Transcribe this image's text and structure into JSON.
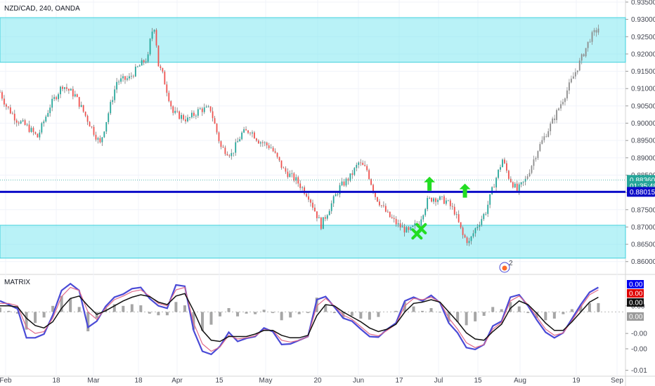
{
  "header": {
    "symbol_title": "NZD/CAD, 240, OANDA",
    "indicator_title": "MATRIX"
  },
  "colors": {
    "zone_fill": "#7fe8f0",
    "zone_stroke": "#3fd0dc",
    "level_line": "#0c0cc8",
    "candle": "#8c8c8c",
    "candle_up": "#26a69a",
    "candle_down": "#ef5350",
    "arrow": "#22dd22",
    "osc_fast": "#4a4ad6",
    "osc_slow": "#e06b8b",
    "osc_mid": "#111111",
    "osc_hist": "#909090"
  },
  "chart_data": [
    {
      "type": "candlestick",
      "title": "NZD/CAD, 240, OANDA",
      "price_axis": {
        "range": [
          0.8565,
          0.9356
        ],
        "ticks": [
          "0.93500",
          "0.93000",
          "0.92500",
          "0.92000",
          "0.91500",
          "0.91000",
          "0.90500",
          "0.90000",
          "0.89500",
          "0.89000",
          "0.88500",
          "0.88000",
          "0.87500",
          "0.87000",
          "0.86500",
          "0.86000"
        ]
      },
      "time_axis": {
        "ticks": [
          "Feb",
          "18",
          "Mar",
          "18",
          "Apr",
          "15",
          "May",
          "20",
          "Jun",
          "17",
          "Jul",
          "15",
          "Aug",
          "19",
          "Sep"
        ]
      },
      "price_labels": [
        {
          "text": "0.88360",
          "value": 0.8836,
          "bg": "#26a69a"
        },
        {
          "text": "01:35:48",
          "value": 0.88185,
          "bg": "#26a69a"
        },
        {
          "text": "0.88015",
          "value": 0.88015,
          "bg": "#0c0cc8"
        }
      ],
      "level_line": 0.88015,
      "last_price_line": 0.8836,
      "zones": [
        {
          "from": 0.9176,
          "to": 0.9305
        },
        {
          "from": 0.861,
          "to": 0.8705
        }
      ],
      "path": [
        {
          "t": 0,
          "p": 0.909
        },
        {
          "t": 3,
          "p": 0.905
        },
        {
          "t": 8,
          "p": 0.901
        },
        {
          "t": 13,
          "p": 0.899
        },
        {
          "t": 18,
          "p": 0.896
        },
        {
          "t": 24,
          "p": 0.905
        },
        {
          "t": 30,
          "p": 0.911
        },
        {
          "t": 36,
          "p": 0.908
        },
        {
          "t": 42,
          "p": 0.901
        },
        {
          "t": 48,
          "p": 0.894
        },
        {
          "t": 52,
          "p": 0.903
        },
        {
          "t": 56,
          "p": 0.912
        },
        {
          "t": 62,
          "p": 0.913
        },
        {
          "t": 66,
          "p": 0.916
        },
        {
          "t": 71,
          "p": 0.919
        },
        {
          "t": 72.5,
          "p": 0.926
        },
        {
          "t": 74.5,
          "p": 0.9285
        },
        {
          "t": 75.5,
          "p": 0.9175
        },
        {
          "t": 78,
          "p": 0.914
        },
        {
          "t": 83,
          "p": 0.903
        },
        {
          "t": 90,
          "p": 0.901
        },
        {
          "t": 96,
          "p": 0.904
        },
        {
          "t": 101,
          "p": 0.904
        },
        {
          "t": 106,
          "p": 0.893
        },
        {
          "t": 111,
          "p": 0.891
        },
        {
          "t": 116,
          "p": 0.897
        },
        {
          "t": 120,
          "p": 0.898
        },
        {
          "t": 124,
          "p": 0.895
        },
        {
          "t": 130,
          "p": 0.893
        },
        {
          "t": 136,
          "p": 0.8865
        },
        {
          "t": 142,
          "p": 0.8835
        },
        {
          "t": 148,
          "p": 0.879
        },
        {
          "t": 154,
          "p": 0.8705
        },
        {
          "t": 158,
          "p": 0.8755
        },
        {
          "t": 163,
          "p": 0.8815
        },
        {
          "t": 168,
          "p": 0.8845
        },
        {
          "t": 172,
          "p": 0.8885
        },
        {
          "t": 176,
          "p": 0.8865
        },
        {
          "t": 180,
          "p": 0.879
        },
        {
          "t": 186,
          "p": 0.8735
        },
        {
          "t": 191,
          "p": 0.8705
        },
        {
          "t": 196,
          "p": 0.8685
        },
        {
          "t": 201,
          "p": 0.8715
        },
        {
          "t": 205,
          "p": 0.8775
        },
        {
          "t": 208,
          "p": 0.8785
        },
        {
          "t": 214,
          "p": 0.8775
        },
        {
          "t": 218,
          "p": 0.8745
        },
        {
          "t": 222,
          "p": 0.8675
        },
        {
          "t": 225,
          "p": 0.8655
        },
        {
          "t": 228,
          "p": 0.8695
        },
        {
          "t": 233,
          "p": 0.8745
        },
        {
          "t": 237,
          "p": 0.8825
        },
        {
          "t": 241,
          "p": 0.8895
        },
        {
          "t": 244,
          "p": 0.8845
        },
        {
          "t": 248,
          "p": 0.8805
        },
        {
          "t": 252,
          "p": 0.8835
        },
        {
          "t": 258,
          "p": 0.8925
        },
        {
          "t": 265,
          "p": 0.9005
        },
        {
          "t": 272,
          "p": 0.9095
        },
        {
          "t": 278,
          "p": 0.9175
        },
        {
          "t": 283,
          "p": 0.9245
        },
        {
          "t": 287,
          "p": 0.9275
        }
      ],
      "annotations": [
        {
          "type": "arrow-up",
          "t": 206,
          "p": 0.8825
        },
        {
          "type": "arrow-up",
          "t": 223,
          "p": 0.8805
        },
        {
          "type": "cross",
          "t": 202,
          "p": 0.8695
        },
        {
          "type": "cross",
          "t": 200,
          "p": 0.868
        }
      ]
    },
    {
      "type": "line",
      "title": "MATRIX",
      "y_axis": {
        "ticks": [
          "0.00",
          "-0.00",
          "-0.00",
          "-0.01"
        ],
        "range": [
          -0.01,
          0.006
        ]
      },
      "value_labels": [
        {
          "text": "0.00",
          "bg": "#0000ee",
          "color": "#ffffff"
        },
        {
          "text": "0.00",
          "bg": "#e00000",
          "color": "#ffffff"
        },
        {
          "text": "0.00",
          "bg": "#111111",
          "color": "#ffffff"
        },
        {
          "text": "0.00",
          "bg": "#9a9a9a",
          "color": "#ffffff"
        }
      ],
      "series": [
        {
          "values": [
            0.0018,
            0.0012,
            0.0005,
            -0.0042,
            -0.0042,
            -0.0036,
            -0.0005,
            0.0035,
            0.0046,
            0.0035,
            -0.0025,
            -0.0015,
            0.0009,
            0.0024,
            0.0029,
            0.0038,
            0.004,
            0.0022,
            0.001,
            0.0006,
            0.0044,
            0.0042,
            -0.003,
            -0.0064,
            -0.0069,
            -0.0056,
            -0.0033,
            -0.0048,
            -0.0043,
            -0.004,
            -0.0026,
            -0.0032,
            -0.0053,
            -0.0052,
            -0.0046,
            -0.004,
            0.002,
            0.0025,
            0.0008,
            -0.001,
            -0.0015,
            -0.0028,
            -0.004,
            -0.0041,
            -0.0028,
            -0.0018,
            0.0018,
            0.0024,
            0.0018,
            0.0027,
            0.0015,
            -0.0018,
            -0.0034,
            -0.0058,
            -0.0061,
            -0.0053,
            -0.0023,
            -0.0015,
            0.0024,
            0.0028,
            0.001,
            -0.0013,
            -0.0033,
            -0.0042,
            -0.0034,
            -0.0011,
            0.0012,
            0.0032,
            0.004
          ]
        },
        {
          "values": [
            0.0014,
            0.0014,
            0.001,
            -0.0025,
            -0.0035,
            -0.0032,
            -0.001,
            0.0025,
            0.004,
            0.0035,
            0.0,
            -0.0012,
            0.0006,
            0.002,
            0.0026,
            0.0033,
            0.0036,
            0.0026,
            0.0014,
            0.001,
            0.0036,
            0.004,
            -0.0018,
            -0.0052,
            -0.0064,
            -0.0057,
            -0.0038,
            -0.0044,
            -0.0042,
            -0.0039,
            -0.0029,
            -0.003,
            -0.0046,
            -0.0049,
            -0.0046,
            -0.004,
            0.001,
            0.0022,
            0.001,
            -0.0005,
            -0.0012,
            -0.0024,
            -0.0036,
            -0.0039,
            -0.003,
            -0.002,
            0.001,
            0.0022,
            0.002,
            0.0024,
            0.0016,
            -0.001,
            -0.0028,
            -0.005,
            -0.0058,
            -0.0053,
            -0.0028,
            -0.0017,
            0.0018,
            0.0026,
            0.0012,
            -0.0008,
            -0.0028,
            -0.0038,
            -0.0034,
            -0.0014,
            0.0008,
            0.0028,
            0.0036
          ]
        },
        {
          "values": [
            0.001,
            0.001,
            0.0008,
            -0.001,
            -0.0022,
            -0.0026,
            -0.0016,
            0.0006,
            0.0022,
            0.0026,
            0.001,
            -0.0004,
            0.0002,
            0.001,
            0.0018,
            0.0024,
            0.0028,
            0.0025,
            0.0016,
            0.0012,
            0.0026,
            0.003,
            0.0002,
            -0.003,
            -0.0046,
            -0.0048,
            -0.004,
            -0.004,
            -0.004,
            -0.0036,
            -0.003,
            -0.003,
            -0.0038,
            -0.0042,
            -0.0042,
            -0.0038,
            -0.0006,
            0.0012,
            0.001,
            0.0,
            -0.0008,
            -0.0016,
            -0.0026,
            -0.0032,
            -0.0028,
            -0.002,
            0.0,
            0.0014,
            0.0016,
            0.002,
            0.0016,
            0.0,
            -0.0016,
            -0.0034,
            -0.0044,
            -0.0046,
            -0.0032,
            -0.002,
            0.0006,
            0.0018,
            0.0012,
            -0.0002,
            -0.0018,
            -0.003,
            -0.003,
            -0.0016,
            0.0,
            0.0016,
            0.0024
          ]
        }
      ]
    }
  ]
}
